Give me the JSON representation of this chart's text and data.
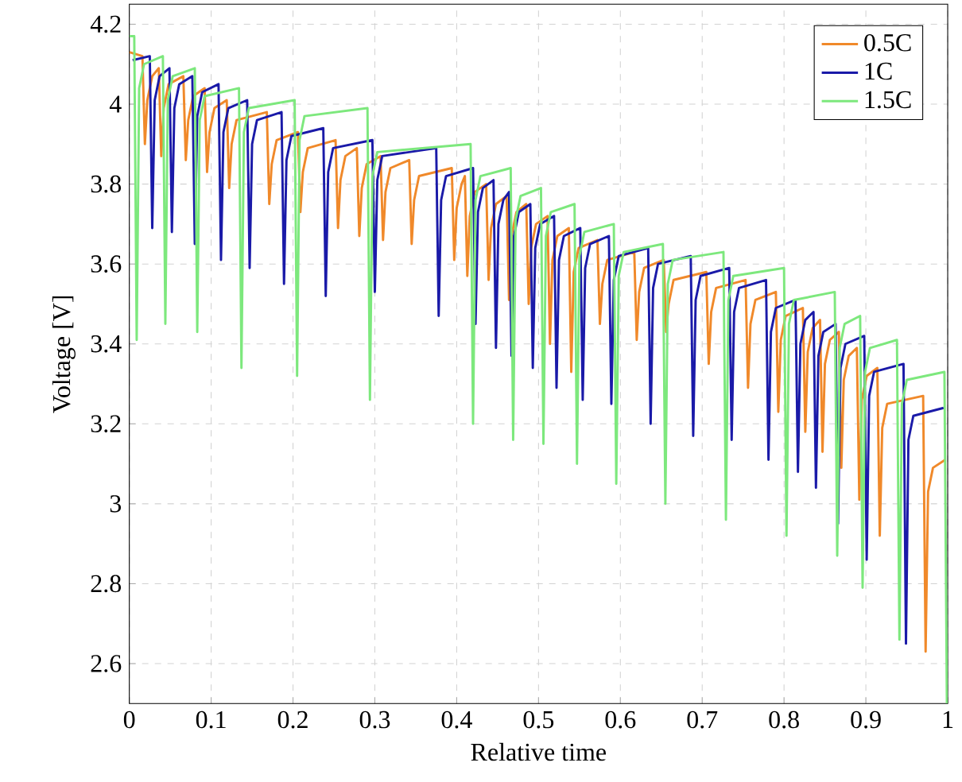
{
  "chart_data": {
    "type": "line",
    "xlabel": "Relative time",
    "ylabel": "Voltage [V]",
    "xlim": [
      0,
      1
    ],
    "ylim": [
      2.5,
      4.25
    ],
    "xticks": [
      0,
      0.1,
      0.2,
      0.3,
      0.4,
      0.5,
      0.6,
      0.7,
      0.8,
      0.9,
      1
    ],
    "yticks": [
      2.6,
      2.8,
      3,
      3.2,
      3.4,
      3.6,
      3.8,
      4,
      4.2
    ],
    "grid": true,
    "legend": "top right",
    "series": [
      {
        "name": "0.5C",
        "color": "#f0892a",
        "x": [
          0.0,
          0.016,
          0.019,
          0.022,
          0.028,
          0.036,
          0.039,
          0.042,
          0.048,
          0.066,
          0.069,
          0.072,
          0.078,
          0.092,
          0.095,
          0.098,
          0.104,
          0.119,
          0.122,
          0.125,
          0.131,
          0.168,
          0.171,
          0.174,
          0.18,
          0.206,
          0.209,
          0.212,
          0.218,
          0.252,
          0.255,
          0.258,
          0.264,
          0.278,
          0.281,
          0.284,
          0.29,
          0.307,
          0.31,
          0.313,
          0.319,
          0.342,
          0.345,
          0.348,
          0.354,
          0.394,
          0.397,
          0.4,
          0.406,
          0.41,
          0.413,
          0.416,
          0.422,
          0.436,
          0.439,
          0.442,
          0.448,
          0.461,
          0.464,
          0.467,
          0.473,
          0.485,
          0.488,
          0.491,
          0.497,
          0.511,
          0.514,
          0.517,
          0.523,
          0.537,
          0.54,
          0.543,
          0.549,
          0.572,
          0.575,
          0.578,
          0.584,
          0.617,
          0.62,
          0.623,
          0.629,
          0.653,
          0.656,
          0.659,
          0.665,
          0.705,
          0.708,
          0.711,
          0.717,
          0.753,
          0.756,
          0.759,
          0.765,
          0.79,
          0.793,
          0.796,
          0.802,
          0.823,
          0.826,
          0.829,
          0.835,
          0.844,
          0.847,
          0.85,
          0.856,
          0.867,
          0.87,
          0.873,
          0.879,
          0.889,
          0.892,
          0.895,
          0.901,
          0.914,
          0.917,
          0.92,
          0.926,
          0.97,
          0.973,
          0.976,
          0.982,
          0.997
        ],
        "values": [
          4.13,
          4.12,
          3.9,
          4.01,
          4.07,
          4.09,
          3.87,
          3.99,
          4.05,
          4.07,
          3.86,
          3.96,
          4.02,
          4.04,
          3.83,
          3.93,
          3.99,
          4.01,
          3.79,
          3.9,
          3.96,
          3.98,
          3.75,
          3.85,
          3.91,
          3.93,
          3.73,
          3.83,
          3.89,
          3.91,
          3.69,
          3.81,
          3.87,
          3.89,
          3.67,
          3.79,
          3.85,
          3.87,
          3.66,
          3.78,
          3.84,
          3.86,
          3.65,
          3.76,
          3.82,
          3.84,
          3.61,
          3.74,
          3.8,
          3.82,
          3.57,
          3.72,
          3.78,
          3.8,
          3.56,
          3.69,
          3.75,
          3.77,
          3.51,
          3.67,
          3.73,
          3.75,
          3.5,
          3.64,
          3.7,
          3.72,
          3.4,
          3.61,
          3.67,
          3.69,
          3.33,
          3.58,
          3.64,
          3.66,
          3.45,
          3.55,
          3.61,
          3.63,
          3.41,
          3.53,
          3.59,
          3.61,
          3.43,
          3.5,
          3.56,
          3.58,
          3.35,
          3.48,
          3.54,
          3.56,
          3.29,
          3.45,
          3.51,
          3.53,
          3.23,
          3.41,
          3.47,
          3.49,
          3.18,
          3.38,
          3.44,
          3.46,
          3.13,
          3.35,
          3.41,
          3.43,
          3.09,
          3.31,
          3.37,
          3.39,
          3.01,
          3.26,
          3.32,
          3.34,
          2.92,
          3.19,
          3.25,
          3.27,
          2.63,
          3.03,
          3.09,
          3.11
        ]
      },
      {
        "name": "1C",
        "color": "#1a1aa8",
        "x": [
          0.004,
          0.025,
          0.028,
          0.031,
          0.037,
          0.049,
          0.052,
          0.055,
          0.061,
          0.077,
          0.08,
          0.083,
          0.089,
          0.109,
          0.112,
          0.115,
          0.121,
          0.144,
          0.147,
          0.15,
          0.156,
          0.186,
          0.189,
          0.192,
          0.198,
          0.237,
          0.24,
          0.243,
          0.249,
          0.297,
          0.3,
          0.303,
          0.309,
          0.375,
          0.378,
          0.381,
          0.387,
          0.42,
          0.423,
          0.426,
          0.432,
          0.445,
          0.448,
          0.451,
          0.457,
          0.464,
          0.467,
          0.47,
          0.476,
          0.49,
          0.493,
          0.496,
          0.502,
          0.519,
          0.522,
          0.525,
          0.531,
          0.551,
          0.554,
          0.557,
          0.563,
          0.586,
          0.589,
          0.592,
          0.598,
          0.634,
          0.637,
          0.64,
          0.646,
          0.686,
          0.689,
          0.692,
          0.698,
          0.733,
          0.736,
          0.739,
          0.745,
          0.778,
          0.781,
          0.784,
          0.79,
          0.814,
          0.817,
          0.82,
          0.826,
          0.836,
          0.839,
          0.842,
          0.848,
          0.863,
          0.866,
          0.869,
          0.875,
          0.898,
          0.901,
          0.904,
          0.91,
          0.946,
          0.949,
          0.952,
          0.958,
          0.995
        ],
        "values": [
          4.11,
          4.12,
          3.69,
          4.01,
          4.07,
          4.09,
          3.68,
          3.99,
          4.05,
          4.07,
          3.65,
          3.97,
          4.03,
          4.05,
          3.61,
          3.93,
          3.99,
          4.01,
          3.59,
          3.9,
          3.96,
          3.98,
          3.55,
          3.86,
          3.92,
          3.94,
          3.52,
          3.83,
          3.89,
          3.91,
          3.53,
          3.81,
          3.87,
          3.89,
          3.47,
          3.76,
          3.82,
          3.84,
          3.45,
          3.73,
          3.79,
          3.81,
          3.39,
          3.7,
          3.76,
          3.78,
          3.37,
          3.67,
          3.73,
          3.75,
          3.34,
          3.64,
          3.7,
          3.72,
          3.29,
          3.61,
          3.67,
          3.69,
          3.26,
          3.59,
          3.65,
          3.67,
          3.25,
          3.56,
          3.62,
          3.64,
          3.2,
          3.54,
          3.6,
          3.62,
          3.17,
          3.51,
          3.57,
          3.59,
          3.16,
          3.48,
          3.54,
          3.56,
          3.11,
          3.43,
          3.49,
          3.51,
          3.08,
          3.4,
          3.46,
          3.48,
          3.04,
          3.37,
          3.43,
          3.45,
          2.95,
          3.34,
          3.4,
          3.42,
          2.86,
          3.27,
          3.33,
          3.35,
          2.65,
          3.16,
          3.22,
          3.24
        ]
      },
      {
        "name": "1.5C",
        "color": "#7de87d",
        "x": [
          0.0,
          0.006,
          0.009,
          0.012,
          0.018,
          0.041,
          0.044,
          0.047,
          0.053,
          0.08,
          0.083,
          0.086,
          0.092,
          0.134,
          0.137,
          0.14,
          0.146,
          0.202,
          0.205,
          0.208,
          0.214,
          0.291,
          0.294,
          0.297,
          0.303,
          0.417,
          0.42,
          0.423,
          0.429,
          0.466,
          0.469,
          0.472,
          0.478,
          0.503,
          0.506,
          0.509,
          0.515,
          0.544,
          0.547,
          0.55,
          0.556,
          0.592,
          0.595,
          0.598,
          0.604,
          0.652,
          0.655,
          0.658,
          0.664,
          0.726,
          0.729,
          0.732,
          0.738,
          0.8,
          0.803,
          0.806,
          0.812,
          0.862,
          0.865,
          0.868,
          0.874,
          0.893,
          0.896,
          0.899,
          0.905,
          0.938,
          0.941,
          0.944,
          0.95,
          0.996,
          0.999
        ],
        "values": [
          4.17,
          4.17,
          3.41,
          4.04,
          4.1,
          4.12,
          3.45,
          4.01,
          4.07,
          4.09,
          3.43,
          3.96,
          4.02,
          4.04,
          3.34,
          3.93,
          3.99,
          4.01,
          3.32,
          3.91,
          3.97,
          3.99,
          3.26,
          3.82,
          3.88,
          3.9,
          3.2,
          3.76,
          3.82,
          3.84,
          3.16,
          3.71,
          3.77,
          3.79,
          3.15,
          3.67,
          3.73,
          3.75,
          3.1,
          3.62,
          3.68,
          3.7,
          3.05,
          3.57,
          3.63,
          3.65,
          3.0,
          3.55,
          3.61,
          3.63,
          2.96,
          3.51,
          3.57,
          3.59,
          2.92,
          3.45,
          3.51,
          3.53,
          2.87,
          3.39,
          3.45,
          3.47,
          2.79,
          3.33,
          3.39,
          3.41,
          2.66,
          3.25,
          3.31,
          3.33,
          2.5
        ]
      }
    ]
  }
}
